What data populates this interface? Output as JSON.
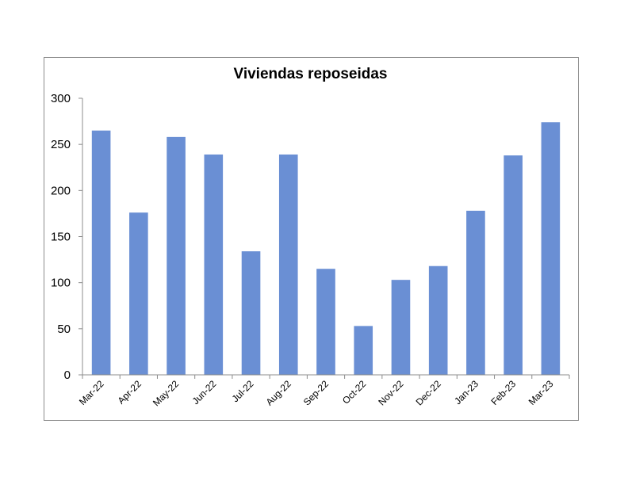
{
  "chart_data": {
    "type": "bar",
    "title": "Viviendas reposeidas",
    "xlabel": "",
    "ylabel": "",
    "categories": [
      "Mar-22",
      "Apr-22",
      "May-22",
      "Jun-22",
      "Jul-22",
      "Aug-22",
      "Sep-22",
      "Oct-22",
      "Nov-22",
      "Dec-22",
      "Jan-23",
      "Feb-23",
      "Mar-23"
    ],
    "values": [
      265,
      176,
      258,
      239,
      134,
      239,
      115,
      53,
      103,
      118,
      178,
      238,
      274
    ],
    "ylim": [
      0,
      300
    ],
    "yticks": [
      0,
      50,
      100,
      150,
      200,
      250,
      300
    ],
    "bar_color": "#6a8fd4",
    "grid": false,
    "legend": "none"
  }
}
